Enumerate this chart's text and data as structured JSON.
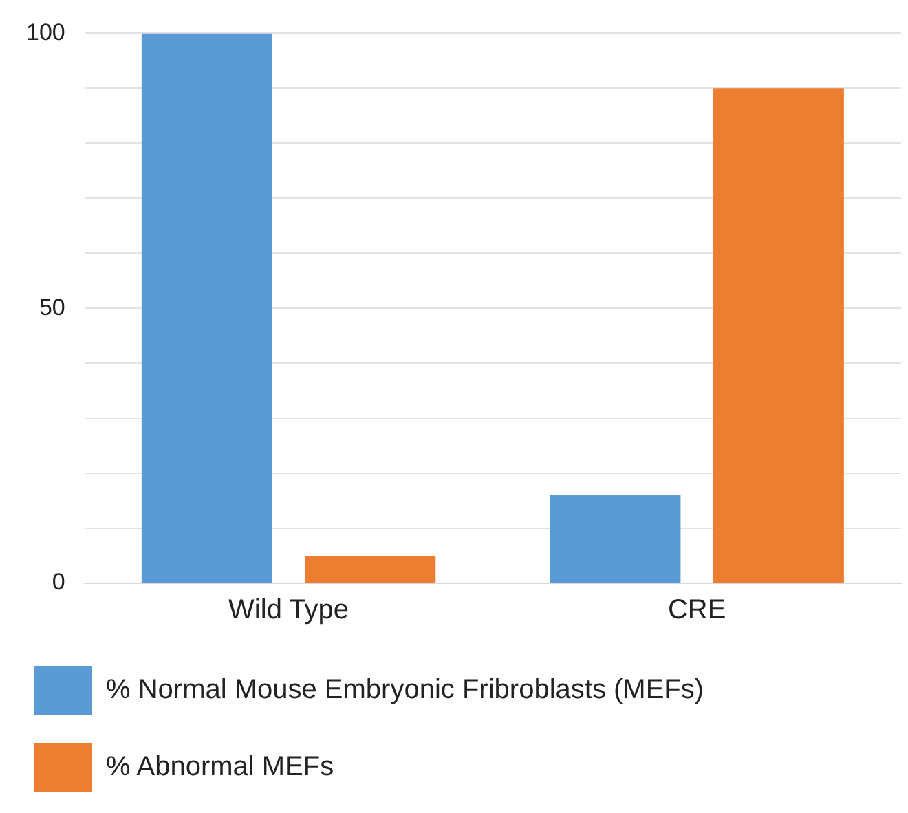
{
  "chart_data": {
    "type": "bar",
    "categories": [
      "Wild Type",
      "CRE"
    ],
    "series": [
      {
        "name": "% Normal Mouse Embryonic Fribroblasts (MEFs)",
        "color": "#5b9bd5",
        "values": [
          100,
          16
        ]
      },
      {
        "name": "% Abnormal MEFs",
        "color": "#ed7d31",
        "values": [
          5,
          90
        ]
      }
    ],
    "ylim": [
      0,
      100
    ],
    "yticks": [
      0,
      {
        "value": 10,
        "label": null
      },
      {
        "value": 20,
        "label": null
      },
      {
        "value": 30,
        "label": null
      },
      {
        "value": 40,
        "label": null
      },
      50,
      {
        "value": 60,
        "label": null
      },
      {
        "value": 70,
        "label": null
      },
      {
        "value": 80,
        "label": null
      },
      {
        "value": 90,
        "label": null
      },
      100
    ],
    "grid": "y",
    "legend": "bottom"
  }
}
